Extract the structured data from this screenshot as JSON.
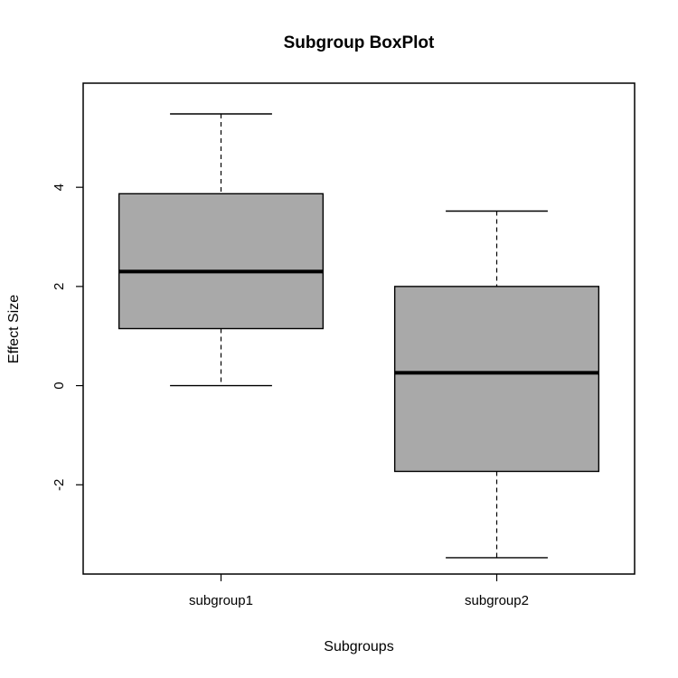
{
  "chart_data": {
    "type": "box",
    "title": "Subgroup BoxPlot",
    "xlabel": "Subgroups",
    "ylabel": "Effect Size",
    "ylim": [
      -3.8,
      6.1
    ],
    "yticks": [
      -2,
      0,
      2,
      4
    ],
    "categories": [
      "subgroup1",
      "subgroup2"
    ],
    "boxes": [
      {
        "name": "subgroup1",
        "min": 0.0,
        "q1": 1.15,
        "median": 2.3,
        "q3": 3.87,
        "max": 5.48
      },
      {
        "name": "subgroup2",
        "min": -3.47,
        "q1": -1.73,
        "median": 0.26,
        "q3": 2.0,
        "max": 3.52
      }
    ],
    "box_fill": "#a9a9a9",
    "legend": "none",
    "grid": false
  }
}
